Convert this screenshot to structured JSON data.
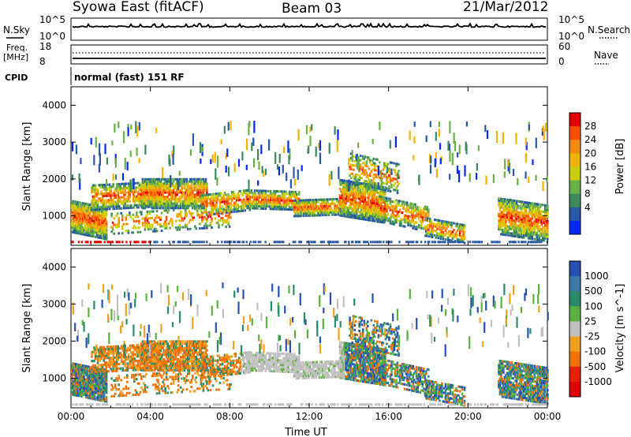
{
  "header": {
    "station": "Syowa East (fitACF)",
    "beam": "Beam 03",
    "date": "21/Mar/2012"
  },
  "noise_panel": {
    "left_label": "N.Sky",
    "right_label": "N.Search",
    "left_ticks": [
      "10^5",
      "10^0"
    ],
    "right_ticks": [
      "10^5",
      "10^0"
    ]
  },
  "freq_panel": {
    "left_label_1": "Freq.",
    "left_label_2": "[MHz]",
    "left_ticks": [
      "18",
      "8"
    ],
    "right_label": "Nave",
    "right_ticks": [
      "60",
      "0"
    ]
  },
  "cpid_panel": {
    "label": "CPID",
    "mode_text": "normal (fast) 151 RF"
  },
  "chart_data": [
    {
      "type": "heatmap",
      "title": "",
      "xlabel": "",
      "ylabel": "Slant Range [km]",
      "x_ticks": [
        "00:00",
        "04:00",
        "08:00",
        "12:00",
        "16:00",
        "20:00",
        "00:00"
      ],
      "y_ticks": [
        1000,
        2000,
        3000,
        4000
      ],
      "ylim": [
        200,
        4500
      ],
      "xlim_hours": [
        0,
        24
      ],
      "colorbar": {
        "label": "Power [dB]",
        "tick_labels": [
          "28",
          "24",
          "20",
          "16",
          "12",
          "8",
          "4"
        ],
        "colors": [
          "#e30000",
          "#ff5000",
          "#f08a10",
          "#f0b400",
          "#c8d000",
          "#6ab04a",
          "#3a8a5a",
          "#2a58a8",
          "#0028ff"
        ]
      }
    },
    {
      "type": "heatmap",
      "title": "",
      "xlabel": "Time UT",
      "ylabel": "Slant Range [km]",
      "x_ticks": [
        "00:00",
        "04:00",
        "08:00",
        "12:00",
        "16:00",
        "20:00",
        "00:00"
      ],
      "y_ticks": [
        1000,
        2000,
        3000,
        4000
      ],
      "ylim": [
        200,
        4500
      ],
      "xlim_hours": [
        0,
        24
      ],
      "colorbar": {
        "label": "Velocity [m s^-1]",
        "tick_labels": [
          "1000",
          "500",
          "100",
          "25",
          "-25",
          "-100",
          "-500",
          "-1000"
        ],
        "colors": [
          "#2850b0",
          "#3a78a8",
          "#2a8a6a",
          "#5ab040",
          "#c0c0c0",
          "#f0a020",
          "#f07000",
          "#e82000",
          "#e00000"
        ]
      }
    }
  ]
}
